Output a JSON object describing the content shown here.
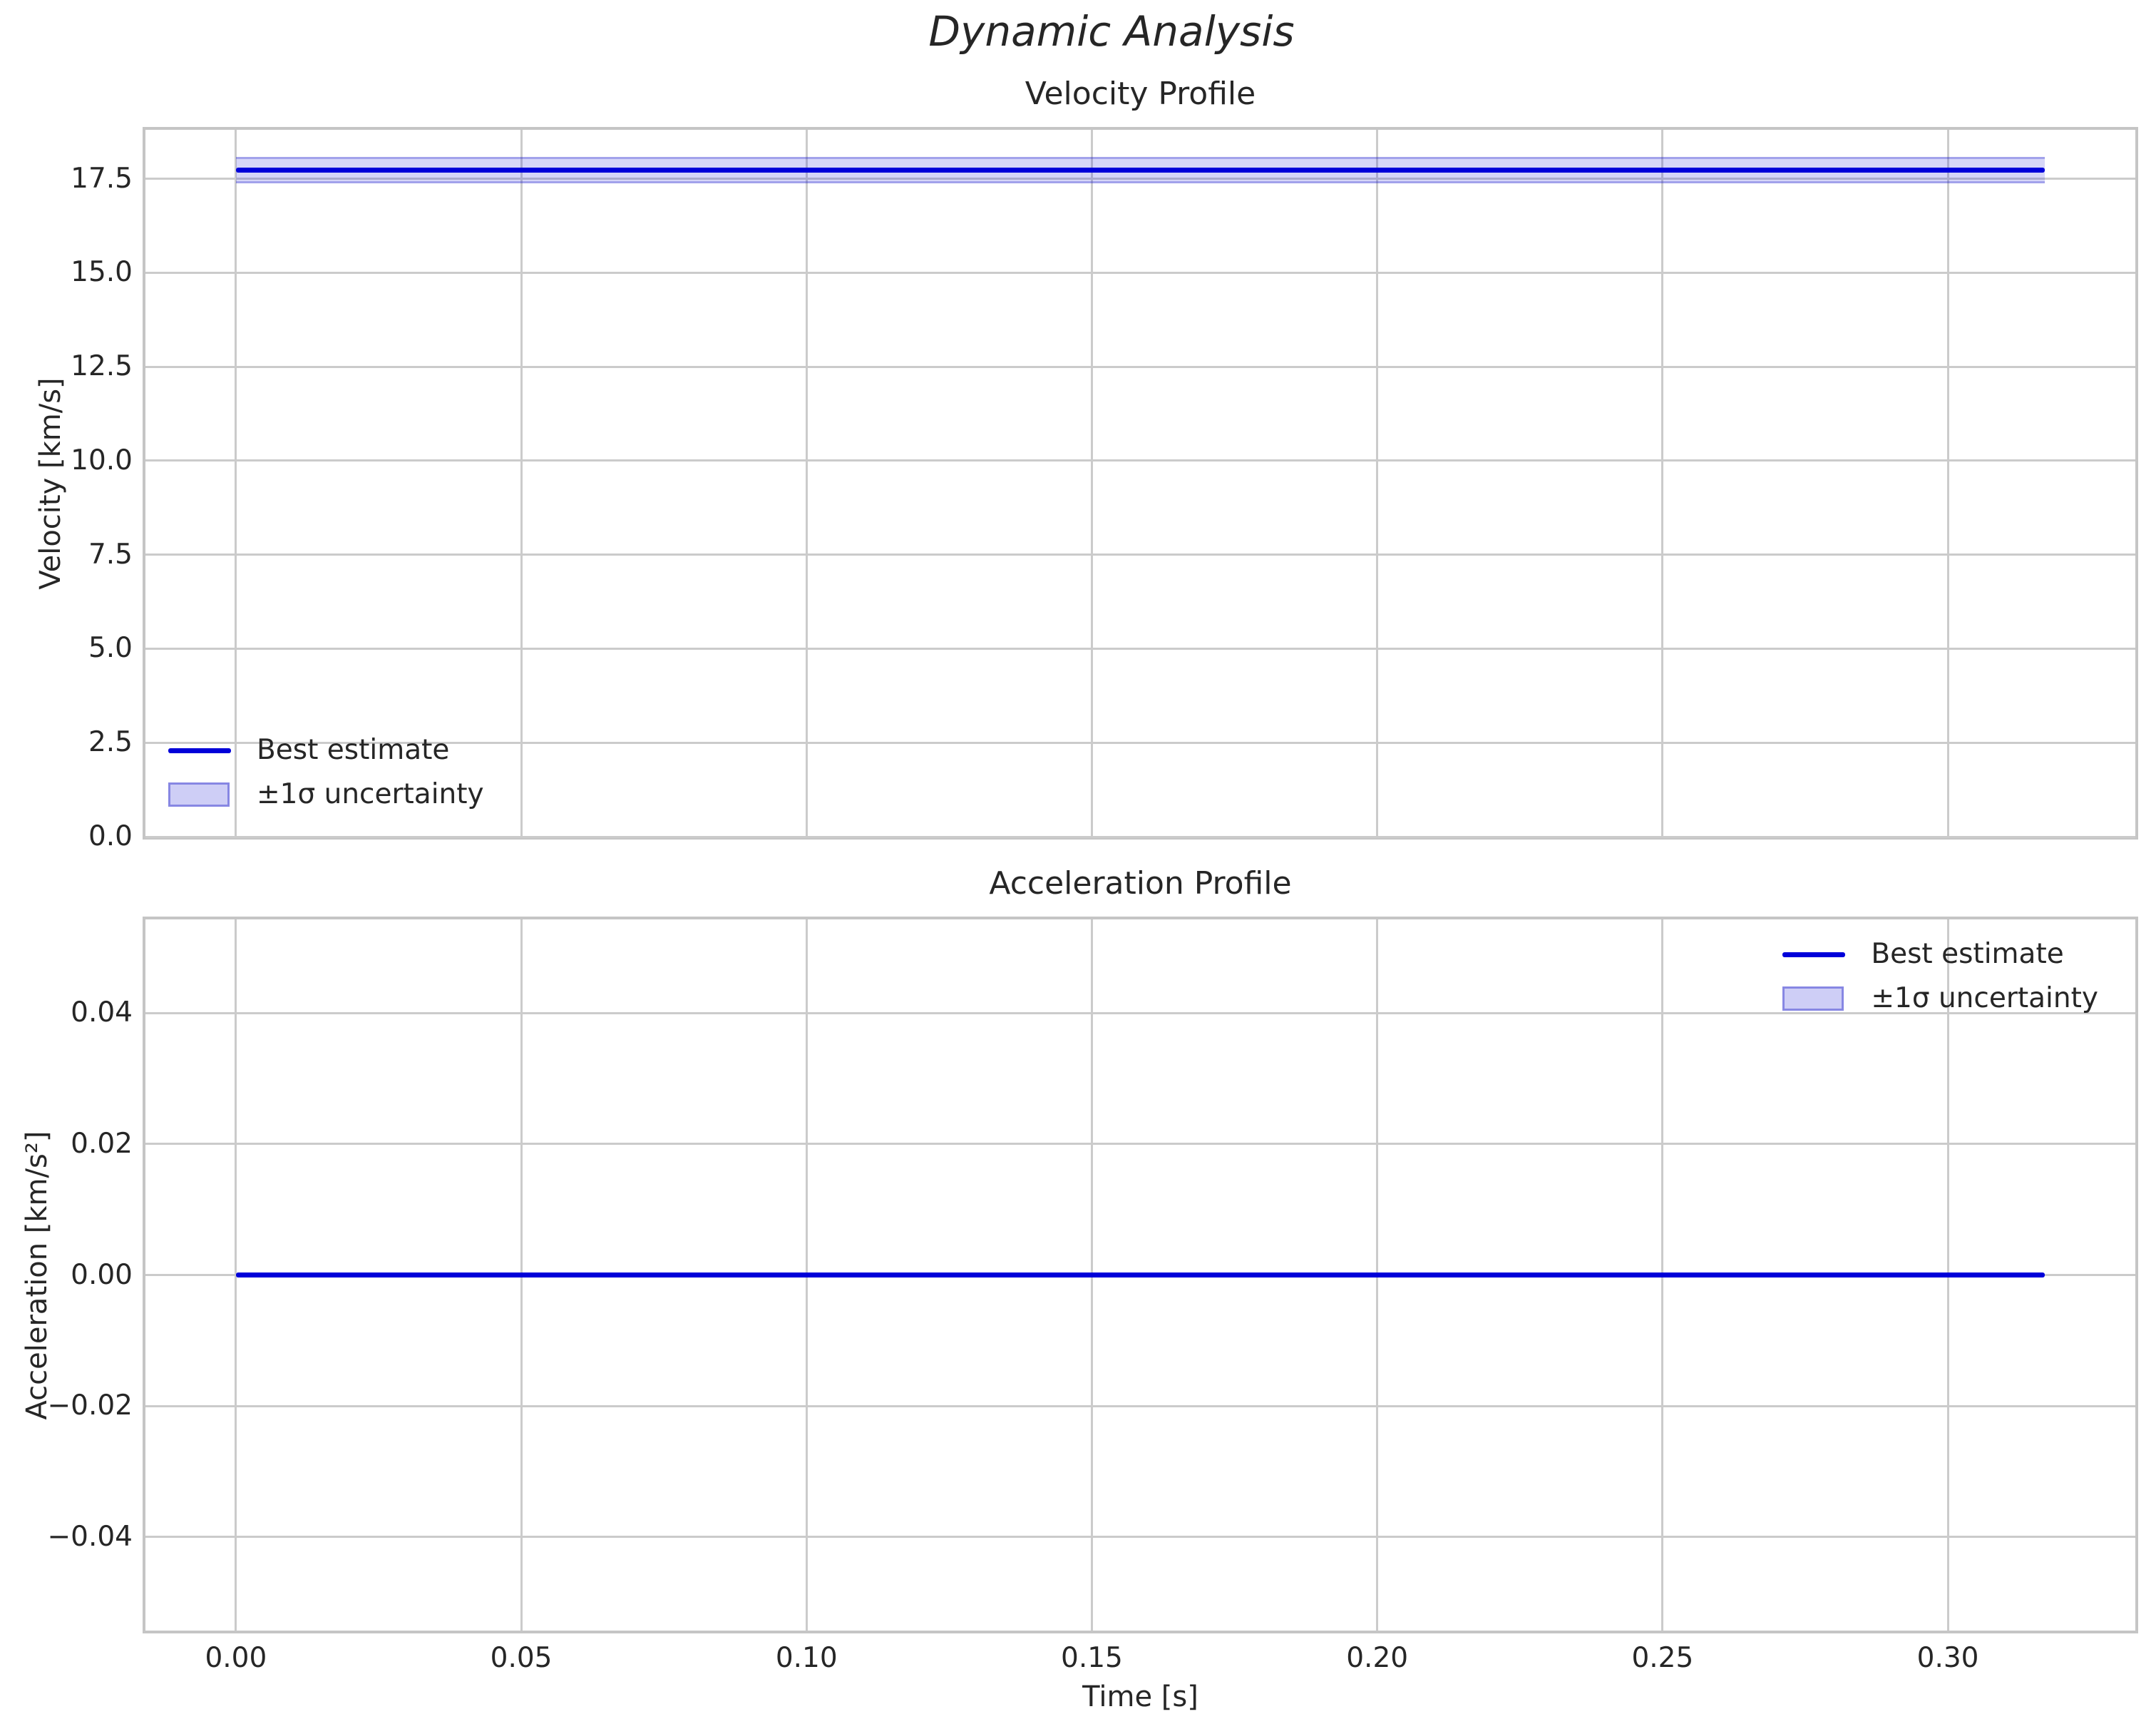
{
  "suptitle": "Dynamic Analysis",
  "xlabel": "Time [s]",
  "colors": {
    "line": "#0000d9",
    "band_fill": "#ccccf8",
    "band_edge": "#a6a6ea",
    "grid": "#cbcbcb",
    "spine": "#c5c5c5",
    "text": "#262626",
    "background": "#ffffff"
  },
  "chart_data": [
    {
      "type": "line",
      "title": "Velocity Profile",
      "ylabel": "Velocity [km/s]",
      "xlabel": "",
      "series": [
        {
          "name": "Best estimate",
          "x_start": 0.0,
          "x_end": 0.317,
          "value": 17.72,
          "sigma": 0.35
        }
      ],
      "band": {
        "lo": 17.37,
        "hi": 18.07
      },
      "xlim": [
        -0.01585,
        0.33285
      ],
      "ylim": [
        0,
        18.8
      ],
      "grid": true,
      "xticks": {
        "values": [
          0.0,
          0.05,
          0.1,
          0.15,
          0.2,
          0.25,
          0.3
        ],
        "labels": [
          "0.00",
          "0.05",
          "0.10",
          "0.15",
          "0.20",
          "0.25",
          "0.30"
        ],
        "show_labels": false
      },
      "yticks": {
        "values": [
          0.0,
          2.5,
          5.0,
          7.5,
          10.0,
          12.5,
          15.0,
          17.5
        ],
        "labels": [
          "0.0",
          "2.5",
          "5.0",
          "7.5",
          "10.0",
          "12.5",
          "15.0",
          "17.5"
        ]
      },
      "legend": [
        "Best estimate",
        "±1σ uncertainty"
      ],
      "legend_position": "lower-left"
    },
    {
      "type": "line",
      "title": "Acceleration Profile",
      "ylabel": "Acceleration [km/s²]",
      "xlabel": "Time [s]",
      "series": [
        {
          "name": "Best estimate",
          "x_start": 0.0,
          "x_end": 0.317,
          "value": 0.0,
          "sigma": 0.0
        }
      ],
      "band": null,
      "xlim": [
        -0.01585,
        0.33285
      ],
      "ylim": [
        -0.0543,
        0.0543
      ],
      "grid": true,
      "xticks": {
        "values": [
          0.0,
          0.05,
          0.1,
          0.15,
          0.2,
          0.25,
          0.3
        ],
        "labels": [
          "0.00",
          "0.05",
          "0.10",
          "0.15",
          "0.20",
          "0.25",
          "0.30"
        ],
        "show_labels": true
      },
      "yticks": {
        "values": [
          0.04,
          0.02,
          0.0,
          -0.02,
          -0.04
        ],
        "labels": [
          "0.04",
          "0.02",
          "0.00",
          "−0.02",
          "−0.04"
        ]
      },
      "legend": [
        "Best estimate",
        "±1σ uncertainty"
      ],
      "legend_position": "upper-right"
    }
  ]
}
